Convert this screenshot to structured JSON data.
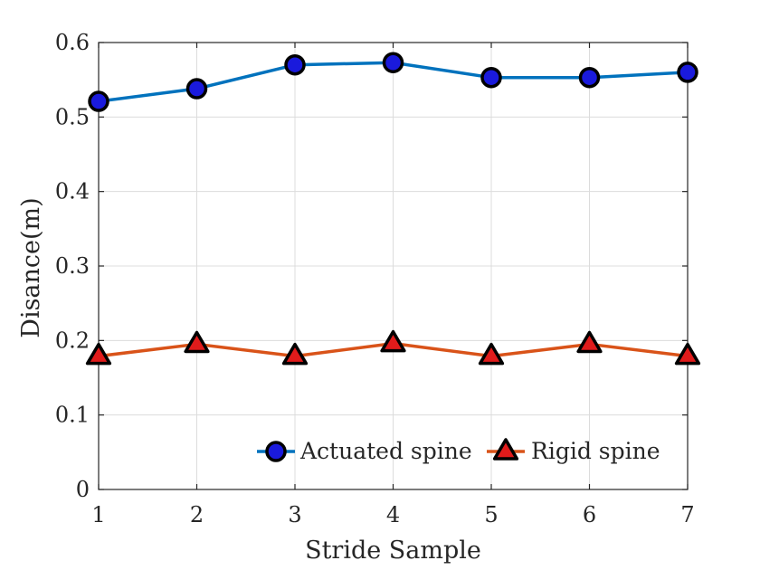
{
  "chart_data": {
    "type": "line",
    "title": "",
    "xlabel": "Stride Sample",
    "ylabel": "Disance(m)",
    "x": [
      1,
      2,
      3,
      4,
      5,
      6,
      7
    ],
    "xlim": [
      1,
      7
    ],
    "ylim": [
      0,
      0.6
    ],
    "xticks": [
      "1",
      "2",
      "3",
      "4",
      "5",
      "6",
      "7"
    ],
    "yticks": [
      "0",
      "0.1",
      "0.2",
      "0.3",
      "0.4",
      "0.5",
      "0.6"
    ],
    "grid": true,
    "legend_position": "bottom-right",
    "series": [
      {
        "name": "Actuated spine",
        "values": [
          0.521,
          0.538,
          0.57,
          0.573,
          0.553,
          0.553,
          0.56
        ],
        "marker": "circle",
        "line_color": "#0072BD",
        "marker_fill": "#1a1adc",
        "marker_edge": "#000000"
      },
      {
        "name": "Rigid spine",
        "values": [
          0.179,
          0.195,
          0.179,
          0.196,
          0.179,
          0.195,
          0.179
        ],
        "marker": "triangle",
        "line_color": "#D95319",
        "marker_fill": "#e01b1b",
        "marker_edge": "#000000"
      }
    ]
  }
}
